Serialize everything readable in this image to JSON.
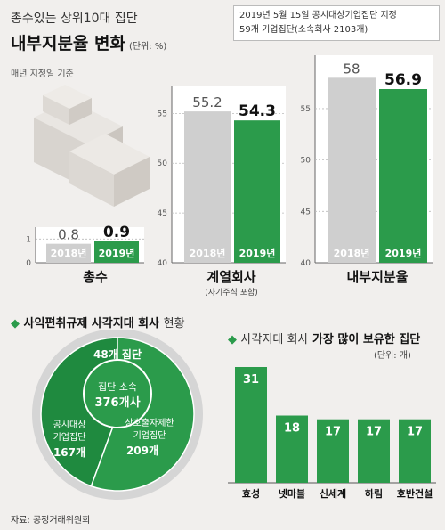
{
  "header": {
    "title_line1": "총수있는 상위10대 집단",
    "title_line2": "내부지분율 변화",
    "unit": "(단위: %)",
    "note_line1": "2019년 5월 15일 공시대상기업집단 지정",
    "note_line2": "59개 기업집단(소속회사 2103개)",
    "basis": "매년 지정일 기준"
  },
  "colors": {
    "green": "#2b9b4b",
    "gray": "#cfcfcf",
    "background": "#f1efed"
  },
  "chart_data": [
    {
      "type": "bar",
      "title": "총수",
      "categories": [
        "2018년",
        "2019년"
      ],
      "values": [
        0.8,
        0.9
      ],
      "value_labels": [
        "0.8",
        "0.9"
      ],
      "yticks": [
        0,
        1
      ],
      "ylim": [
        0,
        1.5
      ]
    },
    {
      "type": "bar",
      "title": "계열회사",
      "subtitle": "(자기주식 포함)",
      "categories": [
        "2018년",
        "2019년"
      ],
      "values": [
        55.2,
        54.3
      ],
      "value_labels": [
        "55.2",
        "54.3"
      ],
      "yticks": [
        40,
        45,
        50,
        55
      ],
      "ylim": [
        40,
        57
      ]
    },
    {
      "type": "bar",
      "title": "내부지분율",
      "categories": [
        "2018년",
        "2019년"
      ],
      "values": [
        58,
        56.9
      ],
      "value_labels": [
        "58",
        "56.9"
      ],
      "yticks": [
        40,
        45,
        50,
        55
      ],
      "ylim": [
        40,
        59.5
      ]
    },
    {
      "type": "pie",
      "title": "사익편취규제 사각지대 회사",
      "title_suffix": "현황",
      "outer_label": "48개 집단",
      "inner_title": "집단 소속",
      "inner_value": "376개사",
      "slices": [
        {
          "label_line1": "공시대상",
          "label_line2": "기업집단",
          "value_label": "167개",
          "value": 167
        },
        {
          "label_line1": "상호출자제한",
          "label_line2": "기업집단",
          "value_label": "209개",
          "value": 209
        }
      ]
    },
    {
      "type": "bar",
      "title": "사각지대 회사",
      "title_emph": "가장 많이 보유한 집단",
      "unit": "(단위: 개)",
      "categories": [
        "효성",
        "넷마블",
        "신세계",
        "하림",
        "호반건설"
      ],
      "values": [
        31,
        18,
        17,
        17,
        17
      ],
      "value_labels": [
        "31",
        "18",
        "17",
        "17",
        "17"
      ],
      "ylim": [
        0,
        31
      ]
    }
  ],
  "source": "자료: 공정거래위원회"
}
